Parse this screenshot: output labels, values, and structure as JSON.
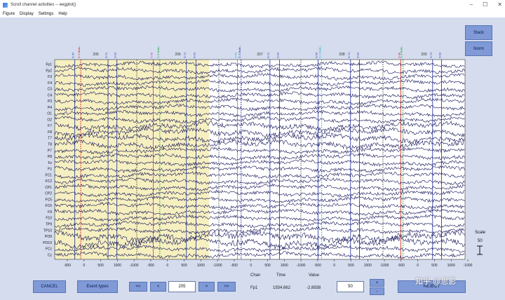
{
  "window": {
    "title": "Scroll channel activities -- eegplot()"
  },
  "menu": [
    "Figure",
    "Display",
    "Settings",
    "Help"
  ],
  "side_buttons": {
    "stack": "Stack",
    "norm": "Norm"
  },
  "channels": [
    "Fp1",
    "Fp2",
    "F3",
    "F4",
    "C3",
    "C4",
    "P3",
    "P4",
    "O1",
    "O2",
    "F7",
    "F8",
    "T7",
    "T8",
    "P7",
    "P8",
    "Fz",
    "Pz",
    "FC1",
    "FC2",
    "CP1",
    "CP2",
    "FC5",
    "FC6",
    "F9",
    "F10",
    "TP9",
    "TP10",
    "PO9",
    "PO10",
    "FCz",
    "Cz"
  ],
  "epochs": [
    "205",
    "206",
    "207",
    "208",
    "209"
  ],
  "event_labels": [
    {
      "text": "S 47",
      "color": "#1a2a9e"
    },
    {
      "text": "S 2 Multi...",
      "color": "#d11"
    },
    {
      "text": "S 71",
      "color": "#1a2a9e"
    },
    {
      "text": "S 91",
      "color": "#1a2a9e"
    },
    {
      "text": "S 55",
      "color": "#c028c0"
    },
    {
      "text": "S 3 Multi...",
      "color": "#1c9a3a"
    },
    {
      "text": "S 71",
      "color": "#1a2a9e"
    },
    {
      "text": "S 91",
      "color": "#1a2a9e"
    },
    {
      "text": "S 60",
      "color": "#18b0c8"
    },
    {
      "text": "S 4 Multi...",
      "color": "#1a2a9e"
    },
    {
      "text": "S 71",
      "color": "#1a2a9e"
    },
    {
      "text": "S 91",
      "color": "#1a2a9e"
    },
    {
      "text": "S 54",
      "color": "#1a2a9e"
    },
    {
      "text": "S 2 Multi...",
      "color": "#18b0c8"
    },
    {
      "text": "S 71",
      "color": "#1a2a9e"
    },
    {
      "text": "S 91",
      "color": "#1a2a9e"
    },
    {
      "text": "S 49",
      "color": "#d11"
    },
    {
      "text": "S 3 Multi...",
      "color": "#1c9a3a"
    },
    {
      "text": "S 71",
      "color": "#1a2a9e"
    },
    {
      "text": "S 91",
      "color": "#1a2a9e"
    }
  ],
  "x_ticks": [
    "-500",
    "0",
    "500",
    "1000",
    "-1000",
    "-500",
    "0",
    "500",
    "1000",
    "-1000",
    "-500",
    "0",
    "500",
    "1000",
    "-1000",
    "-500",
    "0",
    "500",
    "1000",
    "-1000",
    "-500",
    "0",
    "500",
    "1000",
    "-1000"
  ],
  "scale": {
    "label": "Scale",
    "value": "50"
  },
  "controls": {
    "cancel": "CANCEL",
    "event_types": "Event types",
    "prev_prev": "<<",
    "prev": "<",
    "position": "205",
    "next": ">",
    "next_next": ">>",
    "chan_label": "Chan",
    "time_label": "Time",
    "value_label": "Value",
    "chan_value": "Fp1",
    "time_value": "1934.662",
    "value_value": "-2.8938",
    "scale_input": "50",
    "plus": "+",
    "minus": "-",
    "accept": "REJECT"
  },
  "watermark": "知乎 @思影",
  "colors": {
    "trace": "#14145a",
    "highlight": "#f6f0c0",
    "button": "#7f9ad7",
    "background": "#d4dcee"
  }
}
